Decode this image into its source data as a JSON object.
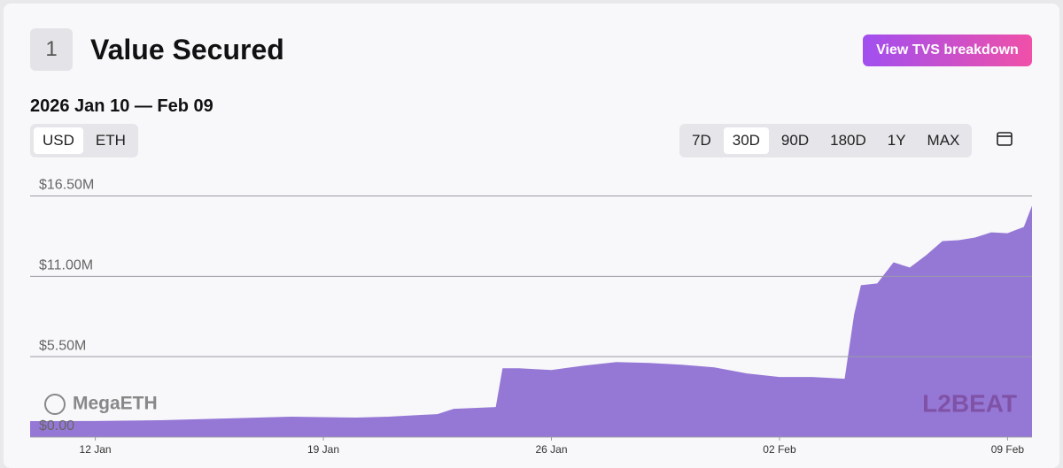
{
  "header": {
    "rank": "1",
    "title": "Value Secured",
    "button": "View TVS breakdown"
  },
  "date_range": "2026 Jan 10 — Feb 09",
  "unit_toggle": [
    "USD",
    "ETH"
  ],
  "range_buttons": [
    "7D",
    "30D",
    "90D",
    "180D",
    "1Y",
    "MAX"
  ],
  "watermark": {
    "project": "MegaETH",
    "brand": "L2BEAT"
  },
  "chart_data": {
    "type": "area",
    "color": "#9577d6",
    "grid": true,
    "x": [
      "2026-01-10T00:00",
      "2026-01-12T00:00",
      "2026-01-14T00:00",
      "2026-01-16T00:00",
      "2026-01-18T00:00",
      "2026-01-20T00:00",
      "2026-01-21T00:00",
      "2026-01-22T00:00",
      "2026-01-22T12:00",
      "2026-01-23T00:00",
      "2026-01-24T07:00",
      "2026-01-24T12:00",
      "2026-01-25T00:00",
      "2026-01-26T00:00",
      "2026-01-27T00:00",
      "2026-01-28T00:00",
      "2026-01-29T00:00",
      "2026-01-30T00:00",
      "2026-01-31T00:00",
      "2026-02-01T00:00",
      "2026-02-02T00:00",
      "2026-02-03T00:00",
      "2026-02-04T00:00",
      "2026-02-04T07:00",
      "2026-02-04T12:00",
      "2026-02-05T00:00",
      "2026-02-05T12:00",
      "2026-02-06T00:00",
      "2026-02-06T12:00",
      "2026-02-07T00:00",
      "2026-02-07T12:00",
      "2026-02-08T00:00",
      "2026-02-08T12:00",
      "2026-02-09T00:00",
      "2026-02-09T12:00",
      "2026-02-09T18:00"
    ],
    "values": [
      1.09,
      1.1,
      1.15,
      1.27,
      1.39,
      1.33,
      1.39,
      1.51,
      1.57,
      1.93,
      2.05,
      4.71,
      4.71,
      4.59,
      4.89,
      5.13,
      5.07,
      4.95,
      4.77,
      4.35,
      4.11,
      4.11,
      3.99,
      8.4,
      10.39,
      10.51,
      11.96,
      11.6,
      12.44,
      13.41,
      13.47,
      13.65,
      14.01,
      13.95,
      14.38,
      15.83
    ],
    "xlim": [
      "2026-01-10T00:00",
      "2026-02-09T18:00"
    ],
    "xticks": [
      {
        "value": "2026-01-12T00:00",
        "label": "12 Jan"
      },
      {
        "value": "2026-01-19T00:00",
        "label": "19 Jan"
      },
      {
        "value": "2026-01-26T00:00",
        "label": "26 Jan"
      },
      {
        "value": "2026-02-02T00:00",
        "label": "02 Feb"
      },
      {
        "value": "2026-02-09T00:00",
        "label": "09 Feb"
      }
    ],
    "ylim": [
      0,
      17.8
    ],
    "yticks": [
      {
        "value": 0,
        "label": "$0.00"
      },
      {
        "value": 5.5,
        "label": "$5.50M"
      },
      {
        "value": 11,
        "label": "$11.00M"
      },
      {
        "value": 16.5,
        "label": "$16.50M"
      }
    ]
  }
}
